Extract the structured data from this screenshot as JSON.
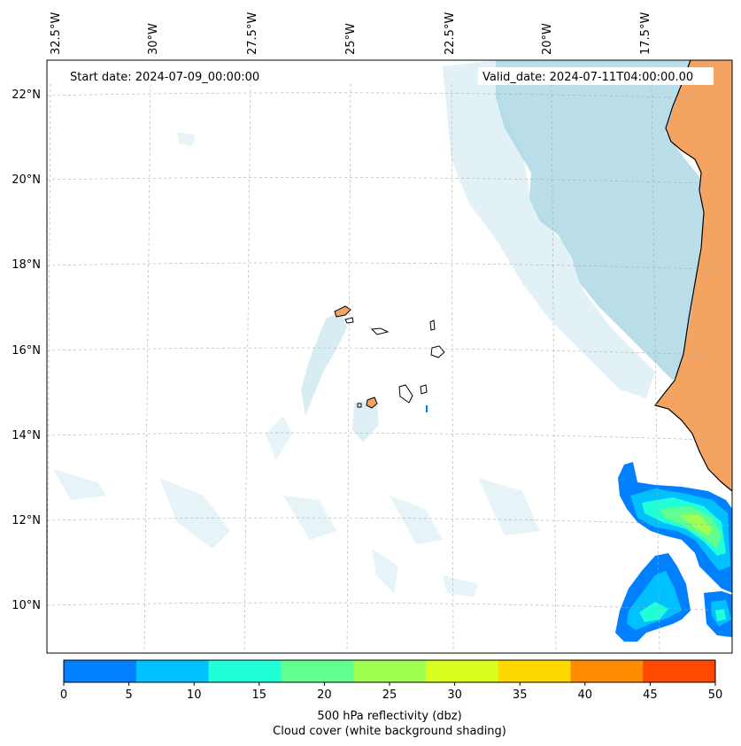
{
  "map": {
    "start_date_label": "Start date: 2024-07-09_00:00:00",
    "valid_date_label": "Valid_date: 2024-07-11T04:00:00.00",
    "lon_ticks": [
      "32.5°W",
      "30°W",
      "27.5°W",
      "25°W",
      "22.5°W",
      "20°W",
      "17.5°W"
    ],
    "lat_ticks": [
      "22°N",
      "20°N",
      "18°N",
      "16°N",
      "14°N",
      "12°N",
      "10°N"
    ],
    "colors": {
      "land": "#f4a460",
      "cloud": "#add8e6",
      "ocean": "#ffffff",
      "coastline": "#000000"
    }
  },
  "colorbar": {
    "ticks": [
      "0",
      "5",
      "10",
      "15",
      "20",
      "25",
      "30",
      "35",
      "40",
      "45",
      "50"
    ],
    "colors": [
      "#0080ff",
      "#00c0ff",
      "#20ffd8",
      "#60ff90",
      "#a0ff50",
      "#d8ff20",
      "#ffd800",
      "#ff8c00",
      "#ff4800"
    ],
    "title_line1": "500 hPa reflectivity (dbz)",
    "title_line2": "Cloud cover (white background shading)"
  }
}
